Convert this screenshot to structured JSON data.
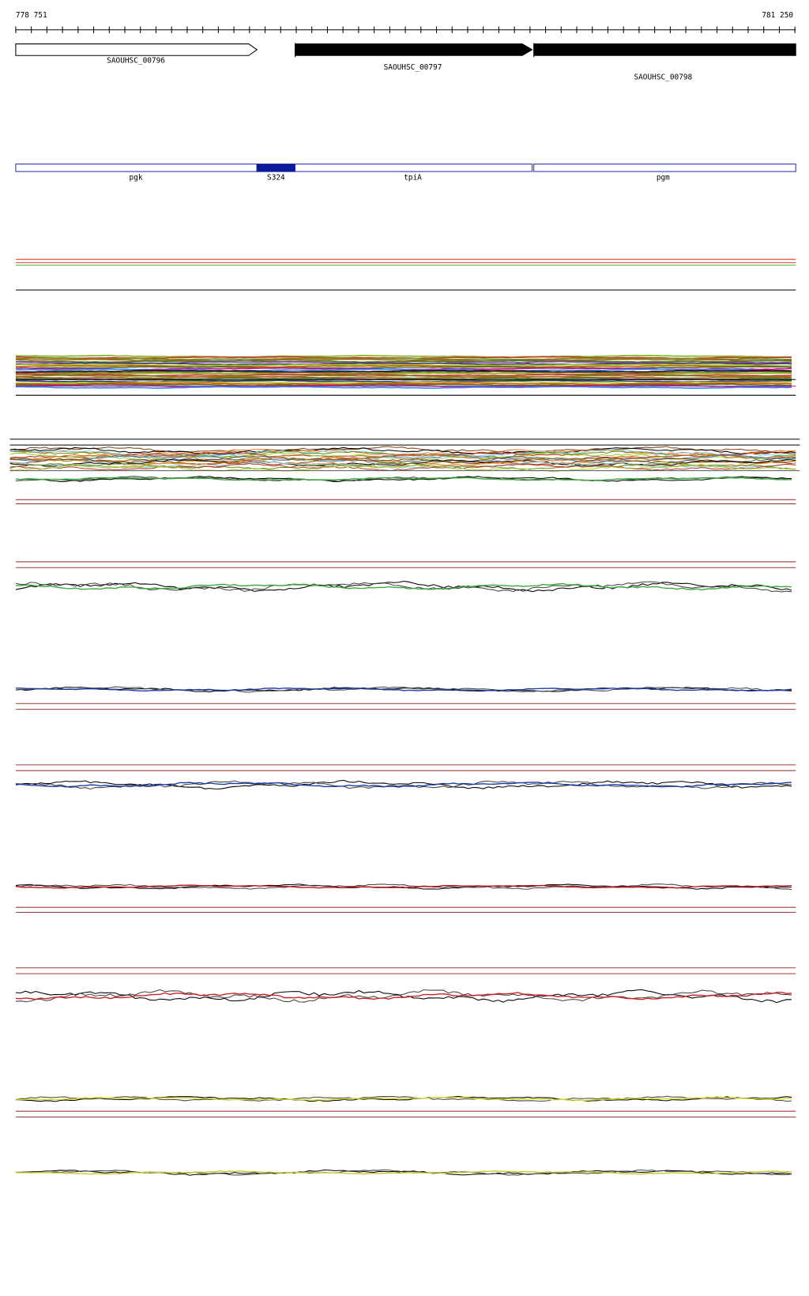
{
  "ruler": {
    "start": "778 751",
    "end": "781 250"
  },
  "genes": [
    {
      "label": "SAOUHSC_00796"
    },
    {
      "label": "SAOUHSC_00797"
    },
    {
      "label": "SAOUHSC_00798"
    }
  ],
  "features": [
    {
      "label": "pgk"
    },
    {
      "label": "S324"
    },
    {
      "label": "tpiA"
    },
    {
      "label": "pgm"
    }
  ]
}
